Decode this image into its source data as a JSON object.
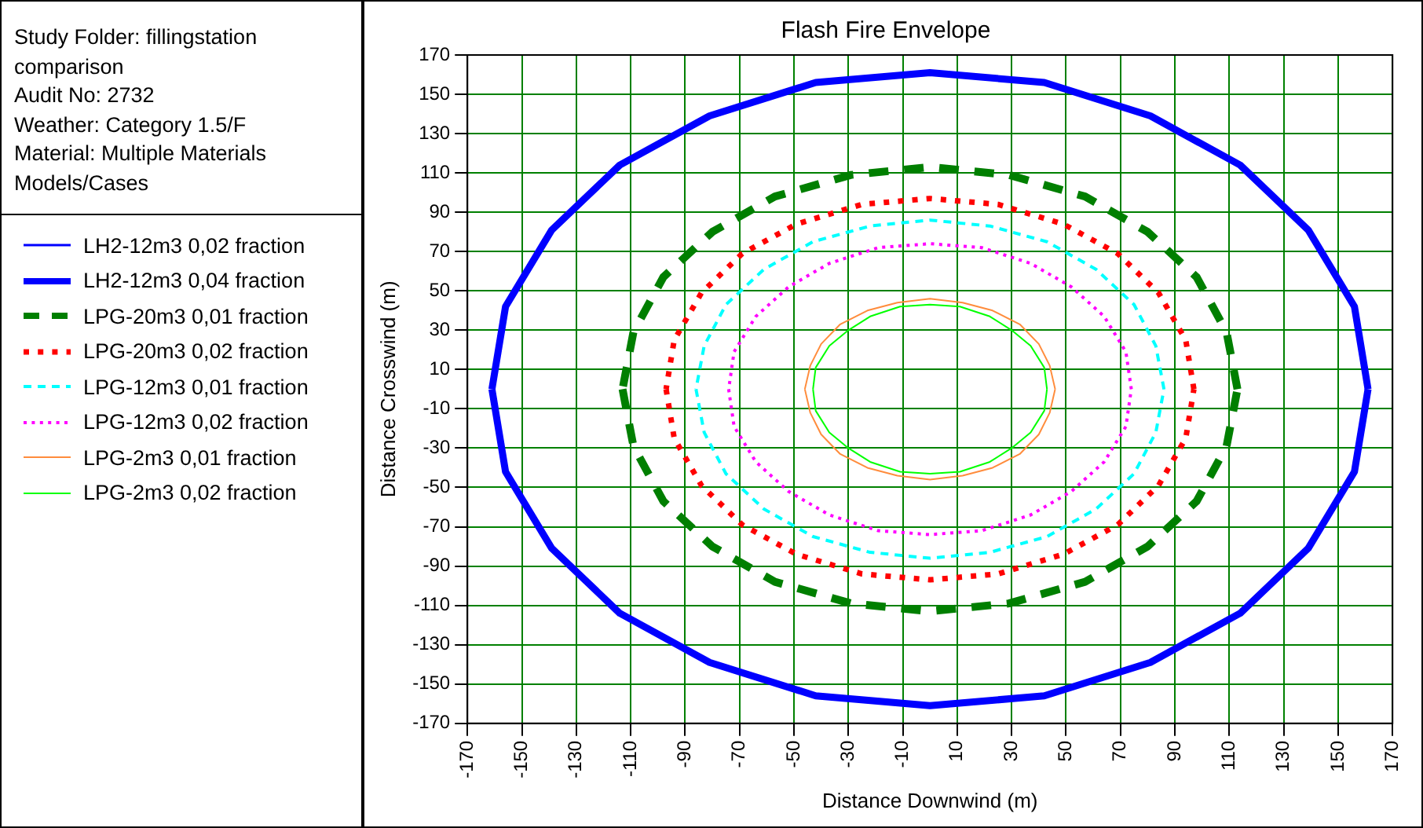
{
  "chart_data": {
    "type": "line",
    "title": "Flash Fire Envelope",
    "xlabel": "Distance Downwind (m)",
    "ylabel": "Distance Crosswind (m)",
    "annotations": [
      "Study Folder: fillingstation comparison",
      "Audit No: 2732",
      "Weather: Category 1.5/F",
      "Material: Multiple Materials",
      "Models/Cases"
    ],
    "xlim": [
      -170,
      170
    ],
    "ylim": [
      -170,
      170
    ],
    "xticks": [
      -170,
      -150,
      -130,
      -110,
      -90,
      -70,
      -50,
      -30,
      -10,
      10,
      30,
      50,
      70,
      90,
      110,
      130,
      150,
      170
    ],
    "yticks": [
      -170,
      -150,
      -130,
      -110,
      -90,
      -70,
      -50,
      -30,
      -10,
      10,
      30,
      50,
      70,
      90,
      110,
      130,
      150,
      170
    ],
    "grid": true,
    "legend": "left",
    "marker": "none",
    "series": [
      {
        "name": "LH2-12m3 0,02 fraction",
        "color": "#0000ff",
        "line_style": "solid"
      },
      {
        "name": "LH2-12m3 0,04 fraction",
        "color": "#0000ff",
        "line_style": "solid",
        "x": [
          161,
          156,
          139,
          114,
          81,
          42,
          0,
          -42,
          -81,
          -114,
          -139,
          -156,
          -161,
          -156,
          -139,
          -114,
          -81,
          -42,
          0,
          42,
          81,
          114,
          139,
          156,
          161
        ],
        "values": [
          0,
          42,
          81,
          114,
          139,
          156,
          161,
          156,
          139,
          114,
          81,
          42,
          0,
          -42,
          -81,
          -114,
          -139,
          -156,
          -161,
          -156,
          -139,
          -114,
          -81,
          -42,
          0
        ]
      },
      {
        "name": "LPG-20m3 0,01 fraction",
        "color": "#007f00",
        "line_style": "dashed",
        "x": [
          113,
          109,
          98,
          80,
          57,
          29,
          0,
          -29,
          -57,
          -80,
          -98,
          -109,
          -113,
          -109,
          -98,
          -80,
          -57,
          -29,
          0,
          29,
          57,
          80,
          98,
          109,
          113
        ],
        "values": [
          0,
          29,
          57,
          80,
          98,
          109,
          113,
          109,
          98,
          80,
          57,
          29,
          0,
          -29,
          -57,
          -80,
          -98,
          -109,
          -113,
          -109,
          -98,
          -80,
          -57,
          -29,
          0
        ]
      },
      {
        "name": "LPG-20m3 0,02 fraction",
        "color": "#ff0000",
        "line_style": "dotted",
        "x": [
          97,
          94,
          84,
          69,
          49,
          25,
          0,
          -25,
          -49,
          -69,
          -84,
          -94,
          -97,
          -94,
          -84,
          -69,
          -49,
          -25,
          0,
          25,
          49,
          69,
          84,
          94,
          97
        ],
        "values": [
          0,
          25,
          49,
          69,
          84,
          94,
          97,
          94,
          84,
          69,
          49,
          25,
          0,
          -25,
          -49,
          -69,
          -84,
          -94,
          -97,
          -94,
          -84,
          -69,
          -49,
          -25,
          0
        ]
      },
      {
        "name": "LPG-12m3 0,01 fraction",
        "color": "#00ffff",
        "line_style": "dashed",
        "x": [
          86,
          83,
          75,
          61,
          43,
          22,
          0,
          -22,
          -43,
          -61,
          -75,
          -83,
          -86,
          -83,
          -75,
          -61,
          -43,
          -22,
          0,
          22,
          43,
          61,
          75,
          83,
          86
        ],
        "values": [
          0,
          22,
          43,
          61,
          75,
          83,
          86,
          83,
          75,
          61,
          43,
          22,
          0,
          -22,
          -43,
          -61,
          -75,
          -83,
          -86,
          -83,
          -75,
          -61,
          -43,
          -22,
          0
        ]
      },
      {
        "name": "LPG-12m3 0,02 fraction",
        "color": "#ff00ff",
        "line_style": "dotted",
        "x": [
          74,
          72,
          64,
          52,
          37,
          19,
          0,
          -19,
          -37,
          -52,
          -64,
          -72,
          -74,
          -72,
          -64,
          -52,
          -37,
          -19,
          0,
          19,
          37,
          52,
          64,
          72,
          74
        ],
        "values": [
          0,
          19,
          37,
          52,
          64,
          72,
          74,
          72,
          64,
          52,
          37,
          19,
          0,
          -19,
          -37,
          -52,
          -64,
          -72,
          -74,
          -72,
          -64,
          -52,
          -37,
          -19,
          0
        ]
      },
      {
        "name": "LPG-2m3 0,01 fraction",
        "color": "#ff8c3c",
        "line_style": "solid",
        "x": [
          46,
          44,
          40,
          33,
          23,
          12,
          0,
          -12,
          -23,
          -33,
          -40,
          -44,
          -46,
          -44,
          -40,
          -33,
          -23,
          -12,
          0,
          12,
          23,
          33,
          40,
          44,
          46
        ],
        "values": [
          0,
          12,
          23,
          33,
          40,
          44,
          46,
          44,
          40,
          33,
          23,
          12,
          0,
          -12,
          -23,
          -33,
          -40,
          -44,
          -46,
          -44,
          -40,
          -33,
          -23,
          -12,
          0
        ]
      },
      {
        "name": "LPG-2m3 0,02 fraction",
        "color": "#00ff00",
        "line_style": "solid",
        "x": [
          43,
          42,
          37,
          30,
          22,
          11,
          0,
          -11,
          -22,
          -30,
          -37,
          -42,
          -43,
          -42,
          -37,
          -30,
          -22,
          -11,
          0,
          11,
          22,
          30,
          37,
          42,
          43
        ],
        "values": [
          0,
          11,
          22,
          30,
          37,
          42,
          43,
          42,
          37,
          30,
          22,
          11,
          0,
          -11,
          -22,
          -30,
          -37,
          -42,
          -43,
          -42,
          -37,
          -30,
          -22,
          -11,
          0
        ]
      }
    ]
  }
}
